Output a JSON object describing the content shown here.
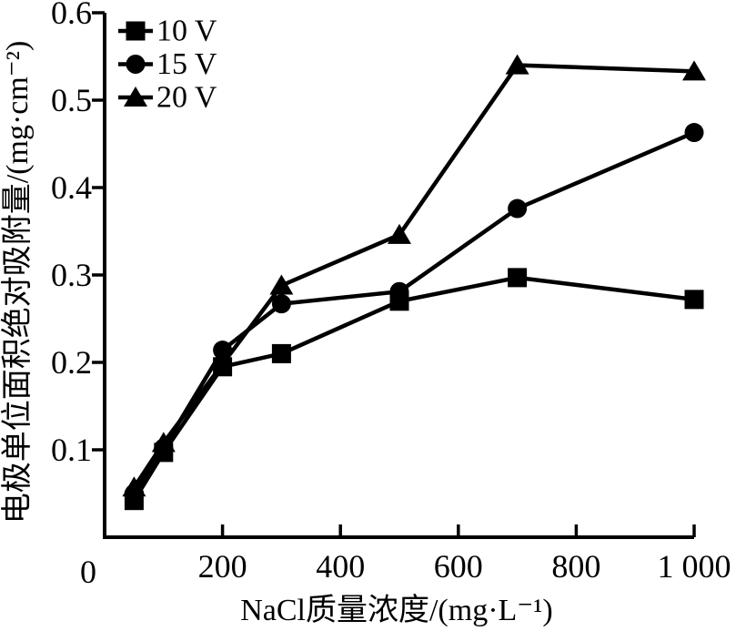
{
  "figure": {
    "background": "#ffffff",
    "ink": "#000000"
  },
  "chart_data": {
    "type": "line",
    "title": "",
    "xlabel": "NaCl质量浓度/(mg·L⁻¹)",
    "ylabel": "电极单位面积绝对吸附量/(mg·cm⁻²)",
    "origin_label": "0",
    "xlim": [
      0,
      1000
    ],
    "ylim": [
      0,
      0.6
    ],
    "grid": false,
    "xticks": {
      "values": [
        200,
        400,
        600,
        800,
        1000
      ],
      "labels": [
        "200",
        "400",
        "600",
        "800",
        "1 000"
      ]
    },
    "yticks": {
      "values": [
        0.1,
        0.2,
        0.3,
        0.4,
        0.5,
        0.6
      ],
      "labels": [
        "0.1",
        "0.2",
        "0.3",
        "0.4",
        "0.5",
        "0.6"
      ]
    },
    "legend": {
      "position": "top-left",
      "entries": [
        "10 V",
        "15 V",
        "20 V"
      ]
    },
    "series": [
      {
        "name": "10 V",
        "marker": "square",
        "color": "#000000",
        "x": [
          50,
          100,
          200,
          300,
          500,
          700,
          1000
        ],
        "y": [
          0.042,
          0.097,
          0.195,
          0.21,
          0.27,
          0.297,
          0.272
        ]
      },
      {
        "name": "15 V",
        "marker": "circle",
        "color": "#000000",
        "x": [
          50,
          100,
          200,
          300,
          500,
          700,
          1000
        ],
        "y": [
          0.05,
          0.102,
          0.214,
          0.267,
          0.281,
          0.376,
          0.463
        ]
      },
      {
        "name": "20 V",
        "marker": "triangle",
        "color": "#000000",
        "x": [
          50,
          100,
          300,
          500,
          700,
          1000
        ],
        "y": [
          0.057,
          0.108,
          0.288,
          0.346,
          0.54,
          0.533
        ]
      }
    ]
  }
}
